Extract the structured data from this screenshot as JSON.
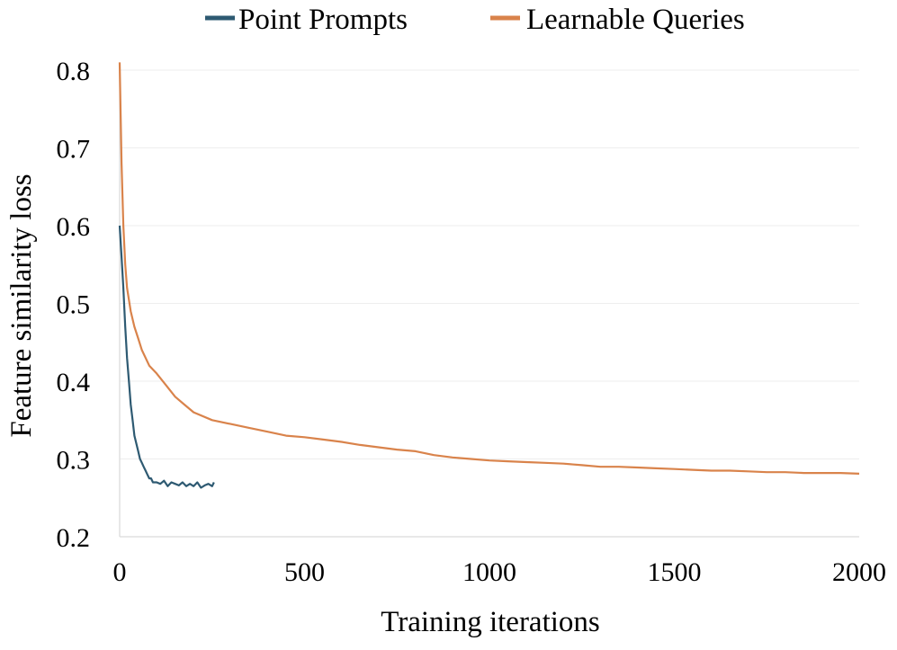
{
  "chart_data": {
    "type": "line",
    "title": "",
    "xlabel": "Training iterations",
    "ylabel": "Feature similarity loss",
    "xlim": [
      0,
      2000
    ],
    "ylim": [
      0.2,
      0.8
    ],
    "x_ticks": [
      "0",
      "500",
      "1000",
      "1500",
      "2000"
    ],
    "y_ticks": [
      "0.2",
      "0.3",
      "0.4",
      "0.5",
      "0.6",
      "0.7",
      "0.8"
    ],
    "grid": true,
    "legend_position": "top",
    "series": [
      {
        "name": "Point Prompts",
        "color": "#2e5a72",
        "x": [
          0,
          5,
          10,
          15,
          20,
          25,
          30,
          35,
          40,
          45,
          50,
          55,
          60,
          65,
          70,
          75,
          80,
          85,
          90,
          95,
          100,
          110,
          120,
          130,
          140,
          150,
          160,
          170,
          180,
          190,
          200,
          210,
          220,
          230,
          240,
          250,
          255
        ],
        "y": [
          0.6,
          0.56,
          0.52,
          0.47,
          0.43,
          0.4,
          0.37,
          0.35,
          0.33,
          0.32,
          0.31,
          0.3,
          0.295,
          0.29,
          0.285,
          0.28,
          0.275,
          0.275,
          0.27,
          0.27,
          0.27,
          0.268,
          0.272,
          0.265,
          0.27,
          0.268,
          0.266,
          0.27,
          0.265,
          0.268,
          0.265,
          0.27,
          0.263,
          0.266,
          0.268,
          0.265,
          0.27
        ]
      },
      {
        "name": "Learnable Queries",
        "color": "#d9834b",
        "x": [
          0,
          5,
          10,
          15,
          20,
          30,
          40,
          50,
          60,
          80,
          100,
          125,
          150,
          175,
          200,
          250,
          300,
          350,
          400,
          450,
          500,
          550,
          600,
          650,
          700,
          750,
          800,
          850,
          900,
          950,
          1000,
          1050,
          1100,
          1150,
          1200,
          1250,
          1300,
          1350,
          1400,
          1450,
          1500,
          1550,
          1600,
          1650,
          1700,
          1750,
          1800,
          1850,
          1900,
          1950,
          2000
        ],
        "y": [
          0.81,
          0.68,
          0.6,
          0.55,
          0.52,
          0.49,
          0.47,
          0.455,
          0.44,
          0.42,
          0.41,
          0.395,
          0.38,
          0.37,
          0.36,
          0.35,
          0.345,
          0.34,
          0.335,
          0.33,
          0.328,
          0.325,
          0.322,
          0.318,
          0.315,
          0.312,
          0.31,
          0.305,
          0.302,
          0.3,
          0.298,
          0.297,
          0.296,
          0.295,
          0.294,
          0.292,
          0.29,
          0.29,
          0.289,
          0.288,
          0.287,
          0.286,
          0.285,
          0.285,
          0.284,
          0.283,
          0.283,
          0.282,
          0.282,
          0.282,
          0.281
        ]
      }
    ]
  }
}
